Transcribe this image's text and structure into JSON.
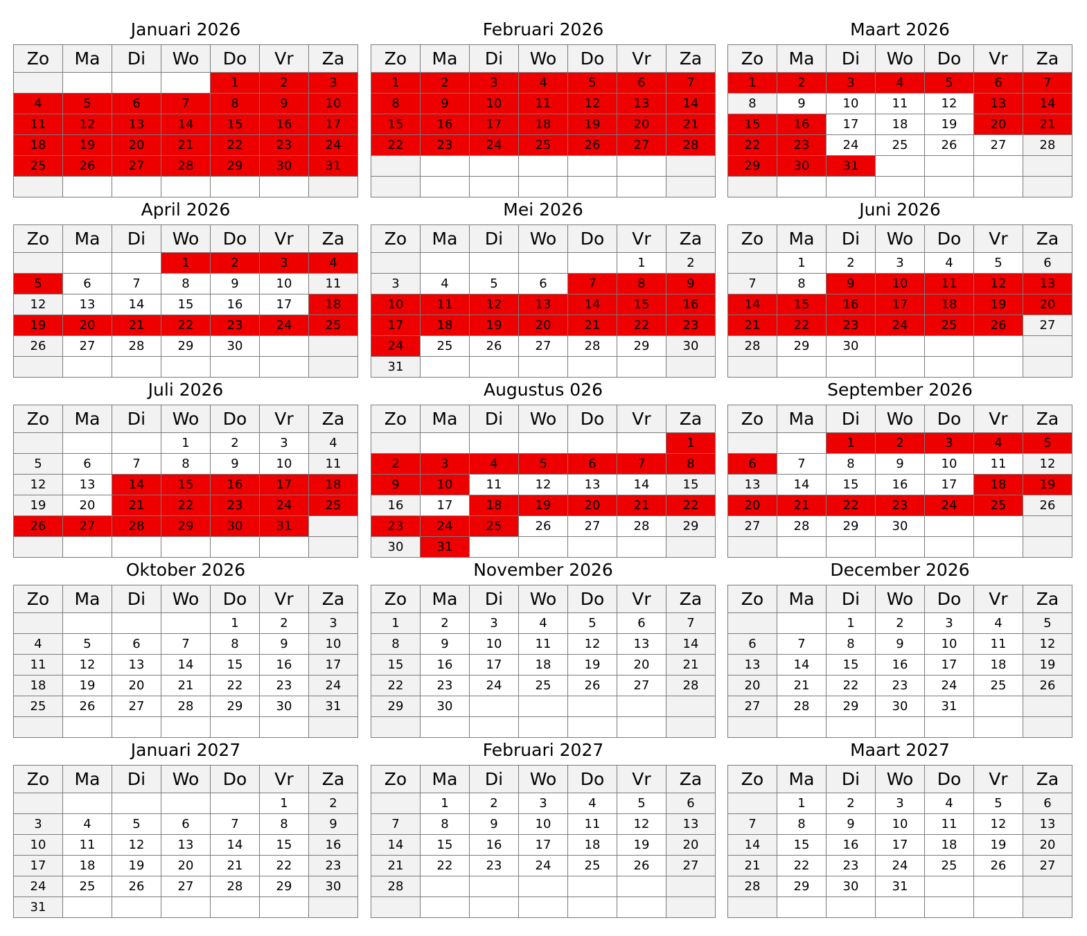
{
  "weekdays": [
    "Zo",
    "Ma",
    "Di",
    "Wo",
    "Do",
    "Vr",
    "Za"
  ],
  "highlight_color": "#ee0000",
  "months": [
    {
      "title": "Januari 2026",
      "offset": 4,
      "days": 31,
      "highlighted": [
        [
          1,
          31
        ]
      ]
    },
    {
      "title": "Februari 2026",
      "offset": 0,
      "days": 28,
      "highlighted": [
        [
          1,
          28
        ]
      ]
    },
    {
      "title": "Maart 2026",
      "offset": 0,
      "days": 31,
      "highlighted": [
        [
          1,
          7
        ],
        [
          13,
          16
        ],
        [
          20,
          23
        ],
        [
          29,
          31
        ]
      ]
    },
    {
      "title": "April 2026",
      "offset": 3,
      "days": 30,
      "highlighted": [
        [
          1,
          5
        ],
        [
          18,
          25
        ]
      ]
    },
    {
      "title": "Mei 2026",
      "offset": 5,
      "days": 31,
      "highlighted": [
        [
          7,
          24
        ]
      ]
    },
    {
      "title": "Juni 2026",
      "offset": 1,
      "days": 30,
      "highlighted": [
        [
          9,
          26
        ]
      ]
    },
    {
      "title": "Juli 2026",
      "offset": 3,
      "days": 31,
      "highlighted": [
        [
          14,
          18
        ],
        [
          21,
          31
        ]
      ]
    },
    {
      "title": "Augustus 026",
      "offset": 6,
      "days": 31,
      "highlighted": [
        [
          1,
          10
        ],
        [
          18,
          25
        ],
        [
          31,
          31
        ]
      ]
    },
    {
      "title": "September 2026",
      "offset": 2,
      "days": 30,
      "highlighted": [
        [
          1,
          6
        ],
        [
          18,
          25
        ]
      ]
    },
    {
      "title": "Oktober 2026",
      "offset": 4,
      "days": 31,
      "highlighted": []
    },
    {
      "title": "November 2026",
      "offset": 0,
      "days": 30,
      "highlighted": []
    },
    {
      "title": "December 2026",
      "offset": 2,
      "days": 31,
      "highlighted": []
    },
    {
      "title": "Januari 2027",
      "offset": 5,
      "days": 31,
      "highlighted": []
    },
    {
      "title": "Februari 2027",
      "offset": 1,
      "days": 28,
      "highlighted": []
    },
    {
      "title": "Maart 2027",
      "offset": 1,
      "days": 31,
      "highlighted": []
    }
  ]
}
